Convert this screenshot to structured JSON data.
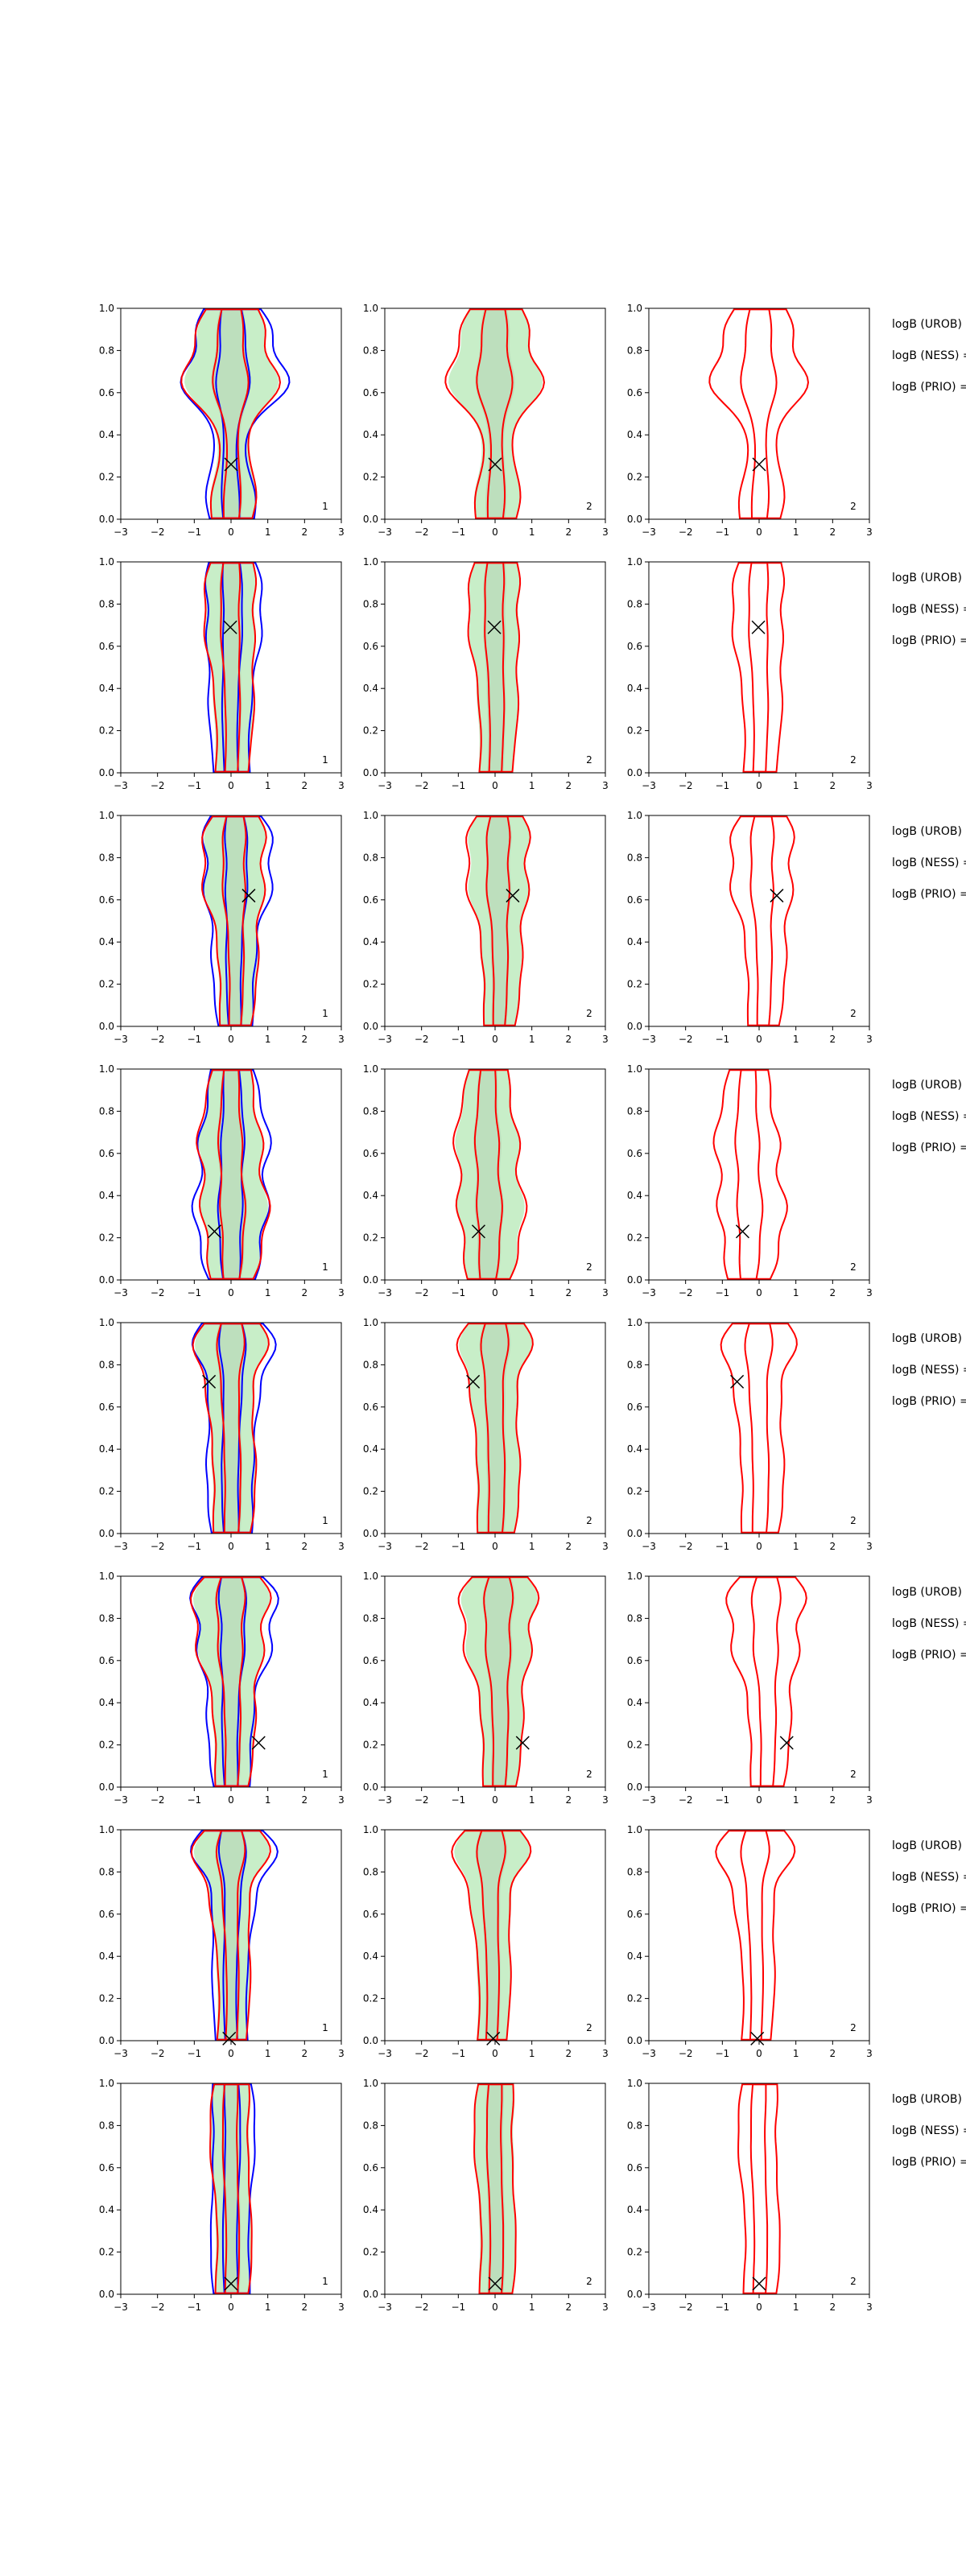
{
  "chart_data": {
    "type": "contour-grid",
    "title": "",
    "rows": 8,
    "columns": 3,
    "x_ticks": [
      "−3",
      "−2",
      "−1",
      "0",
      "1",
      "2",
      "3"
    ],
    "y_ticks": [
      "0.0",
      "0.2",
      "0.4",
      "0.6",
      "0.8",
      "1.0"
    ],
    "xlim": [
      -3,
      3
    ],
    "ylim": [
      0,
      1
    ],
    "colors": {
      "fill": "#c8eec8",
      "fill_inner": "#b8d8b8",
      "blue": "#0000ff",
      "red": "#ff0000",
      "marker": "#000000"
    },
    "panel_ids": [
      "1",
      "2",
      "2"
    ],
    "logb_labels": [
      "logB (UROB) =",
      "logB (NESS) =",
      "logB (PRIO) ="
    ],
    "panels": [
      {
        "marker": [
          0.0,
          0.26
        ],
        "center": [
          0,
          0,
          0
        ],
        "width": 0.9,
        "spread": [
          0.15,
          -0.1,
          0.9,
          0.45
        ]
      },
      {
        "marker": [
          -0.02,
          0.69
        ],
        "center": [
          0,
          0,
          0
        ],
        "width": 0.85,
        "spread": [
          0,
          0.1,
          0.25,
          0.25
        ]
      },
      {
        "marker": [
          0.48,
          0.62
        ],
        "center": [
          0.1,
          0.1,
          0.1
        ],
        "width": 0.7,
        "spread": [
          0.1,
          0.2,
          0.5,
          0.5
        ]
      },
      {
        "marker": [
          -0.45,
          0.23
        ],
        "center": [
          0,
          -0.2,
          -0.3
        ],
        "width": 0.8,
        "spread": [
          0.3,
          0.55,
          0.5,
          0.2
        ]
      },
      {
        "marker": [
          -0.6,
          0.72
        ],
        "center": [
          0,
          0,
          0
        ],
        "width": 0.85,
        "spread": [
          0.1,
          0.15,
          0.2,
          0.6
        ]
      },
      {
        "marker": [
          0.75,
          0.21
        ],
        "center": [
          0,
          0.1,
          0.2
        ],
        "width": 0.75,
        "spread": [
          0.1,
          0.2,
          0.55,
          0.7
        ]
      },
      {
        "marker": [
          -0.05,
          0.01
        ],
        "center": [
          0,
          -0.1,
          -0.1
        ],
        "width": 0.75,
        "spread": [
          0,
          0.05,
          0.15,
          0.7
        ]
      },
      {
        "marker": [
          0.0,
          0.05
        ],
        "center": [
          0,
          0,
          0
        ],
        "width": 0.8,
        "spread": [
          0.05,
          0.05,
          0.1,
          0.1
        ]
      }
    ]
  }
}
